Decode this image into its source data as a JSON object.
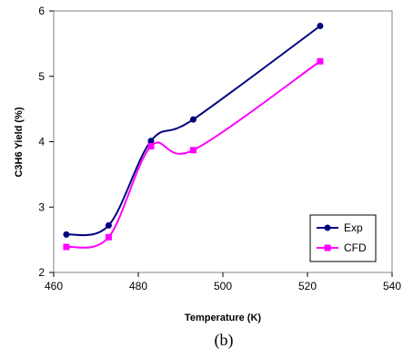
{
  "chart_data": {
    "type": "line",
    "xlabel": "Temperature (K)",
    "ylabel": "C3H6 Yield (%)",
    "xlim": [
      460,
      540
    ],
    "ylim": [
      2,
      6
    ],
    "xticks": [
      460,
      480,
      500,
      520,
      540
    ],
    "yticks": [
      2,
      3,
      4,
      5,
      6
    ],
    "grid": false,
    "legend_position": "bottom-right",
    "series": [
      {
        "name": "Exp",
        "color": "#000080",
        "marker": "circle",
        "x": [
          463,
          473,
          483,
          493,
          523
        ],
        "y": [
          2.58,
          2.72,
          4.01,
          4.34,
          5.77
        ]
      },
      {
        "name": "CFD",
        "color": "#ff00ff",
        "marker": "square",
        "x": [
          463,
          473,
          483,
          493,
          523
        ],
        "y": [
          2.39,
          2.54,
          3.93,
          3.87,
          5.23
        ]
      }
    ]
  },
  "caption": "(b)"
}
